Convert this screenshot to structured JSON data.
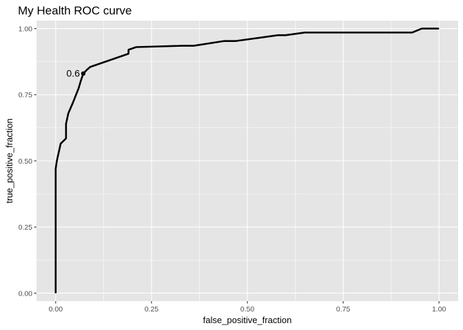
{
  "chart_data": {
    "type": "line",
    "title": "My Health ROC curve",
    "xlabel": "false_positive_fraction",
    "ylabel": "true_positive_fraction",
    "xlim": [
      -0.05,
      1.05
    ],
    "ylim": [
      -0.03,
      1.03
    ],
    "x_ticks": [
      0.0,
      0.25,
      0.5,
      0.75,
      1.0
    ],
    "x_tick_labels": [
      "0.00",
      "0.25",
      "0.50",
      "0.75",
      "1.00"
    ],
    "y_ticks": [
      0.0,
      0.25,
      0.5,
      0.75,
      1.0
    ],
    "y_tick_labels": [
      "0.00",
      "0.25",
      "0.50",
      "0.75",
      "1.00"
    ],
    "grid": true,
    "series": [
      {
        "x": [
          0.0,
          0.0,
          0.0,
          0.003,
          0.013,
          0.027,
          0.027,
          0.033,
          0.045,
          0.06,
          0.065,
          0.072,
          0.082,
          0.09,
          0.19,
          0.19,
          0.21,
          0.33,
          0.36,
          0.44,
          0.47,
          0.58,
          0.6,
          0.65,
          0.93,
          0.955,
          1.0
        ],
        "y": [
          0.0,
          0.2,
          0.47,
          0.5,
          0.565,
          0.585,
          0.64,
          0.68,
          0.72,
          0.775,
          0.8,
          0.83,
          0.845,
          0.855,
          0.905,
          0.92,
          0.93,
          0.935,
          0.935,
          0.953,
          0.953,
          0.975,
          0.975,
          0.985,
          0.985,
          1.0,
          1.0
        ]
      }
    ],
    "annotations": [
      {
        "label": "0.6",
        "x": 0.072,
        "y": 0.83
      }
    ],
    "colors": {
      "panel_background": "#e5e5e5",
      "grid": "#ffffff",
      "line": "#000000",
      "tick_text": "#4d4d4d"
    }
  }
}
